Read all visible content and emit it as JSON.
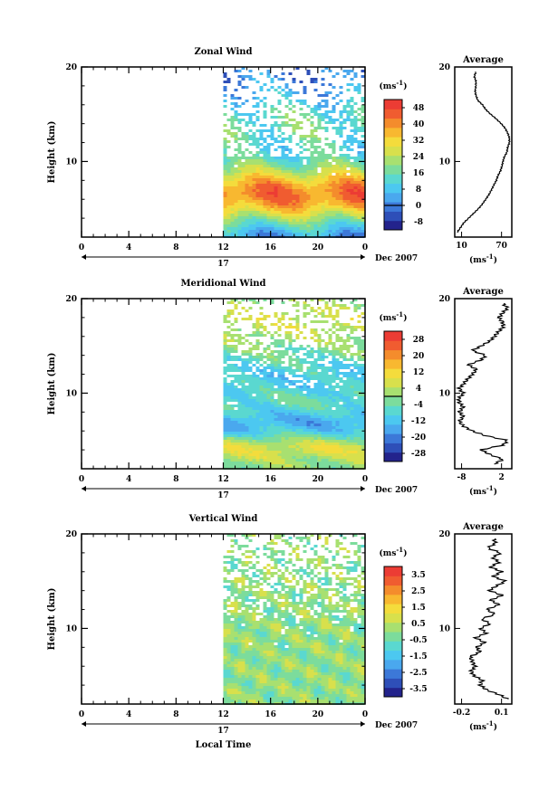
{
  "chart_data": [
    {
      "type": "heatmap",
      "title": "Zonal Wind",
      "ylabel": "Height (km)",
      "yticks": [
        "20",
        "10"
      ],
      "ylim": [
        2,
        20
      ],
      "xticks": [
        "0",
        "4",
        "8",
        "12",
        "16",
        "20",
        "0"
      ],
      "day_label": "17",
      "date_label": "Dec 2007",
      "data_start_hour": 12,
      "colorbar": {
        "unit_label": "(ms",
        "unit_exp": "-1",
        "unit_close": ")",
        "labels": [
          "48",
          "40",
          "32",
          "24",
          "16",
          "8",
          "0",
          "-8"
        ],
        "vmin": -12,
        "vmax": 52,
        "zero_line": 0,
        "colors": [
          "#23238c",
          "#2e4fb8",
          "#3c78d8",
          "#4aa8ee",
          "#4cc8f0",
          "#5ad8d0",
          "#7cdc9c",
          "#a8e070",
          "#d8e04c",
          "#f4dc3c",
          "#f8b830",
          "#f48c2c",
          "#f05c30",
          "#ec3c34"
        ]
      },
      "profile_pattern": "smooth_jet",
      "average": {
        "title": "Average",
        "xticks": [
          "10",
          "70"
        ],
        "xlim": [
          5,
          75
        ],
        "unit_label": "(ms",
        "unit_exp": "-1",
        "unit_close": ")",
        "height_km": [
          2.5,
          3.0,
          3.5,
          4.0,
          4.5,
          5.0,
          5.5,
          6.0,
          6.5,
          7.0,
          7.5,
          8.0,
          8.5,
          9.0,
          9.5,
          10.0,
          10.5,
          11.0,
          11.5,
          12.0,
          12.5,
          13.0,
          13.5,
          14.0,
          14.5,
          15.0,
          15.5,
          16.0,
          16.5,
          17.0,
          17.5,
          18.0,
          18.5,
          19.0,
          19.5
        ],
        "values": [
          8,
          12,
          16,
          22,
          28,
          34,
          39,
          43,
          47,
          50,
          53,
          56,
          58,
          61,
          63,
          64,
          66,
          69,
          70,
          72,
          72,
          70,
          67,
          62,
          56,
          49,
          43,
          39,
          33,
          31,
          30,
          31,
          31,
          29,
          31
        ]
      }
    },
    {
      "type": "heatmap",
      "title": "Meridional Wind",
      "ylabel": "Height (km)",
      "yticks": [
        "20",
        "10"
      ],
      "ylim": [
        2,
        20
      ],
      "xticks": [
        "0",
        "4",
        "8",
        "12",
        "16",
        "20",
        "0"
      ],
      "day_label": "17",
      "date_label": "Dec 2007",
      "data_start_hour": 12,
      "colorbar": {
        "unit_label": "(ms",
        "unit_exp": "-1",
        "unit_close": ")",
        "labels": [
          "28",
          "20",
          "12",
          "4",
          "-4",
          "-12",
          "-20",
          "-28"
        ],
        "vmin": -32,
        "vmax": 32,
        "zero_line": 0,
        "colors": [
          "#23238c",
          "#2e4fb8",
          "#3c78d8",
          "#4aa8ee",
          "#4cc8f0",
          "#5ad8d0",
          "#7cdc9c",
          "#a8e070",
          "#d8e04c",
          "#f4dc3c",
          "#f8b830",
          "#f48c2c",
          "#f05c30",
          "#ec3c34"
        ]
      },
      "profile_pattern": "oscillating",
      "average": {
        "title": "Average",
        "xticks": [
          "-8",
          "2"
        ],
        "xlim": [
          -10,
          3
        ],
        "unit_label": "(ms",
        "unit_exp": "-1",
        "unit_close": ")",
        "height_km": [
          2.5,
          3.0,
          3.5,
          4.0,
          4.5,
          5.0,
          5.5,
          6.0,
          6.5,
          7.0,
          7.5,
          8.0,
          8.5,
          9.0,
          9.5,
          10.0,
          10.5,
          11.0,
          11.5,
          12.0,
          12.5,
          13.0,
          13.5,
          14.0,
          14.5,
          15.0,
          15.5,
          16.0,
          16.5,
          17.0,
          17.5,
          18.0,
          18.5,
          19.0,
          19.5
        ],
        "values": [
          -1,
          1,
          -2,
          -4,
          1,
          2,
          -3,
          -6,
          -8,
          -9,
          -8,
          -9,
          -8,
          -9,
          -9,
          -8,
          -9,
          -8,
          -7,
          -6,
          -5,
          -7,
          -4,
          -3,
          -6,
          -4,
          -2,
          -1,
          0,
          1,
          1,
          0,
          1,
          2,
          1
        ]
      }
    },
    {
      "type": "heatmap",
      "title": "Vertical Wind",
      "ylabel": "Height (km)",
      "yticks": [
        "20",
        "10"
      ],
      "ylim": [
        2,
        20
      ],
      "xticks": [
        "0",
        "4",
        "8",
        "12",
        "16",
        "20",
        "0"
      ],
      "day_label": "17",
      "date_label": "Dec 2007",
      "xlabel": "Local Time",
      "data_start_hour": 12,
      "colorbar": {
        "unit_label": "(ms",
        "unit_exp": "-1",
        "unit_close": ")",
        "labels": [
          "3.5",
          "2.5",
          "1.5",
          "0.5",
          "-0.5",
          "-1.5",
          "-2.5",
          "-3.5"
        ],
        "vmin": -4,
        "vmax": 4,
        "colors": [
          "#23238c",
          "#2e4fb8",
          "#3c78d8",
          "#4aa8ee",
          "#4cc8f0",
          "#5ad8d0",
          "#7cdc9c",
          "#a8e070",
          "#d8e04c",
          "#f4dc3c",
          "#f8b830",
          "#f48c2c",
          "#f05c30",
          "#ec3c34"
        ]
      },
      "profile_pattern": "noisy",
      "average": {
        "title": "Average",
        "xticks": [
          "-0.2",
          "0.1"
        ],
        "xlim": [
          -0.3,
          0.15
        ],
        "unit_label": "(ms",
        "unit_exp": "-1",
        "unit_close": ")",
        "height_km": [
          2.5,
          3.0,
          3.5,
          4.0,
          4.5,
          5.0,
          5.5,
          6.0,
          6.5,
          7.0,
          7.5,
          8.0,
          8.5,
          9.0,
          9.5,
          10.0,
          10.5,
          11.0,
          11.5,
          12.0,
          12.5,
          13.0,
          13.5,
          14.0,
          14.5,
          15.0,
          15.5,
          16.0,
          16.5,
          17.0,
          17.5,
          18.0,
          18.5,
          19.0,
          19.5
        ],
        "values": [
          0.12,
          0.05,
          -0.05,
          -0.1,
          -0.08,
          -0.15,
          -0.17,
          -0.14,
          -0.16,
          -0.18,
          -0.1,
          -0.13,
          -0.06,
          -0.14,
          -0.05,
          -0.1,
          -0.02,
          -0.09,
          0.02,
          -0.05,
          0.05,
          -0.02,
          0.08,
          -0.03,
          0.03,
          0.1,
          0.0,
          0.07,
          -0.02,
          0.05,
          0.0,
          0.06,
          -0.04,
          0.02,
          0.01
        ]
      }
    }
  ]
}
